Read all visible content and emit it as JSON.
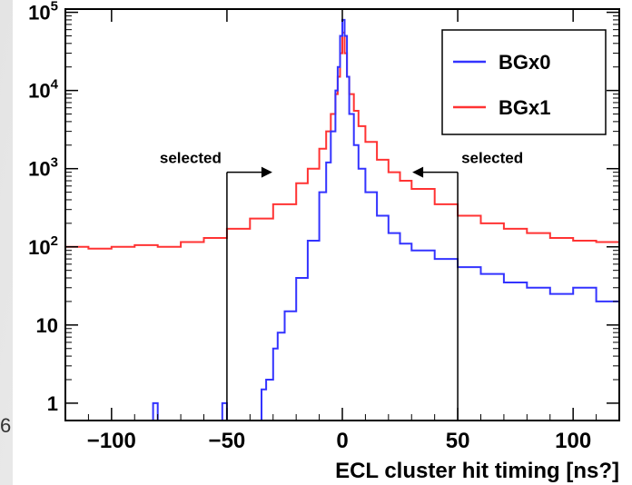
{
  "stray_text": "6",
  "colors": {
    "bgx0": "#3333ff",
    "bgx1": "#ff3333",
    "frame": "#000000"
  },
  "chart_data": {
    "type": "line",
    "title": "",
    "xlabel": "ECL cluster hit timing [ns?]",
    "ylabel": "",
    "xlim": [
      -120,
      120
    ],
    "ylim": [
      0.6,
      110000
    ],
    "yscale": "log",
    "grid": false,
    "legend_position": "top-right",
    "x_ticks": [
      -100,
      -50,
      0,
      50,
      100
    ],
    "y_ticks": [
      {
        "value": 1,
        "base": "1",
        "exp": ""
      },
      {
        "value": 10,
        "base": "10",
        "exp": ""
      },
      {
        "value": 100,
        "base": "10",
        "exp": "2"
      },
      {
        "value": 1000,
        "base": "10",
        "exp": "3"
      },
      {
        "value": 10000,
        "base": "10",
        "exp": "4"
      },
      {
        "value": 100000,
        "base": "10",
        "exp": "5"
      }
    ],
    "series": [
      {
        "name": "BGx1",
        "color": "#ff3333",
        "points": [
          [
            -120,
            100
          ],
          [
            -110,
            95
          ],
          [
            -100,
            100
          ],
          [
            -90,
            105
          ],
          [
            -80,
            100
          ],
          [
            -70,
            115
          ],
          [
            -60,
            130
          ],
          [
            -50,
            170
          ],
          [
            -40,
            230
          ],
          [
            -30,
            350
          ],
          [
            -20,
            650
          ],
          [
            -15,
            1000
          ],
          [
            -10,
            1800
          ],
          [
            -7,
            3000
          ],
          [
            -5,
            5000
          ],
          [
            -3,
            9000
          ],
          [
            -2,
            15000
          ],
          [
            -1,
            30000
          ],
          [
            0,
            55000
          ],
          [
            1,
            30000
          ],
          [
            2,
            15000
          ],
          [
            3,
            9000
          ],
          [
            5,
            5500
          ],
          [
            7,
            3500
          ],
          [
            10,
            2200
          ],
          [
            15,
            1300
          ],
          [
            20,
            900
          ],
          [
            25,
            700
          ],
          [
            30,
            550
          ],
          [
            40,
            350
          ],
          [
            50,
            250
          ],
          [
            60,
            200
          ],
          [
            70,
            170
          ],
          [
            80,
            150
          ],
          [
            90,
            130
          ],
          [
            100,
            120
          ],
          [
            110,
            115
          ],
          [
            120,
            110
          ]
        ]
      },
      {
        "name": "BGx0",
        "color": "#3333ff",
        "points": [
          [
            -120,
            0.6
          ],
          [
            -82,
            0.6
          ],
          [
            -82,
            1
          ],
          [
            -80,
            1
          ],
          [
            -80,
            0.6
          ],
          [
            -52,
            0.6
          ],
          [
            -52,
            1
          ],
          [
            -50,
            1
          ],
          [
            -50,
            0.6
          ],
          [
            -36,
            0.6
          ],
          [
            -35,
            1.5
          ],
          [
            -33,
            2
          ],
          [
            -30,
            5
          ],
          [
            -28,
            8
          ],
          [
            -25,
            15
          ],
          [
            -20,
            40
          ],
          [
            -15,
            120
          ],
          [
            -10,
            500
          ],
          [
            -7,
            1200
          ],
          [
            -5,
            3000
          ],
          [
            -3,
            10000
          ],
          [
            -2,
            20000
          ],
          [
            -1,
            50000
          ],
          [
            0,
            80000
          ],
          [
            1,
            50000
          ],
          [
            2,
            15000
          ],
          [
            3,
            5000
          ],
          [
            5,
            2000
          ],
          [
            7,
            1000
          ],
          [
            10,
            500
          ],
          [
            15,
            250
          ],
          [
            20,
            150
          ],
          [
            25,
            110
          ],
          [
            30,
            90
          ],
          [
            40,
            70
          ],
          [
            50,
            55
          ],
          [
            60,
            45
          ],
          [
            70,
            35
          ],
          [
            80,
            30
          ],
          [
            90,
            25
          ],
          [
            100,
            30
          ],
          [
            110,
            20
          ],
          [
            120,
            15
          ]
        ]
      }
    ],
    "annotations": [
      {
        "text": "selected",
        "line_x": -50,
        "arrow_dir": "right",
        "y_value": 900
      },
      {
        "text": "selected",
        "line_x": 50,
        "arrow_dir": "left",
        "y_value": 900
      }
    ]
  }
}
